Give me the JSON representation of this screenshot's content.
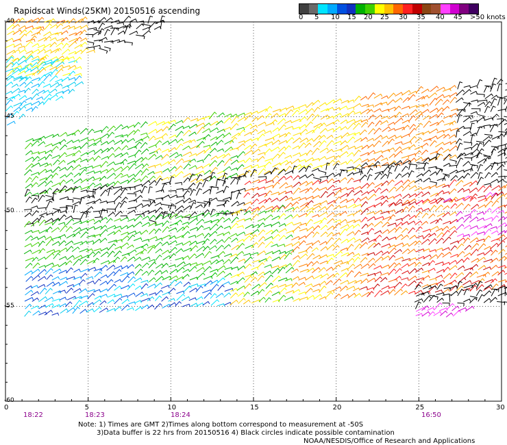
{
  "title": "Rapidscat Winds(25KM) 20150516 ascending",
  "colorbar": {
    "colors": [
      "#404040",
      "#6a6a6a",
      "#00e5ff",
      "#00aaff",
      "#0050e0",
      "#1030c0",
      "#00b000",
      "#40d000",
      "#ffff00",
      "#ffc000",
      "#ff6600",
      "#ff2020",
      "#c00000",
      "#8b4513",
      "#a05030",
      "#ff40ff",
      "#d000d0",
      "#800080",
      "#400060"
    ],
    "labels": [
      "0",
      "5",
      "10",
      "15",
      "20",
      "25",
      "30",
      "35",
      "40",
      "45",
      ">50 knots"
    ]
  },
  "axes": {
    "x_ticks": [
      "0",
      "5",
      "10",
      "15",
      "20",
      "25",
      "30"
    ],
    "y_ticks": [
      "-40",
      "-45",
      "-50",
      "-55",
      "-60"
    ]
  },
  "times": [
    "18:22",
    "18:23",
    "18:24",
    "16:50"
  ],
  "notes": {
    "line1": "Note:  1) Times are GMT  2)Times along bottom correspond to measurement at -50S",
    "line2": "3)Data buffer is 22 hrs from 20150516  4) Black circles indicate possible contamination",
    "line3": "NOAA/NESDIS/Office of Research and Applications"
  },
  "map": {
    "lon_range": [
      0,
      30
    ],
    "lat_range": [
      -60,
      -40
    ],
    "grid": "dotted, every 5 degrees"
  }
}
